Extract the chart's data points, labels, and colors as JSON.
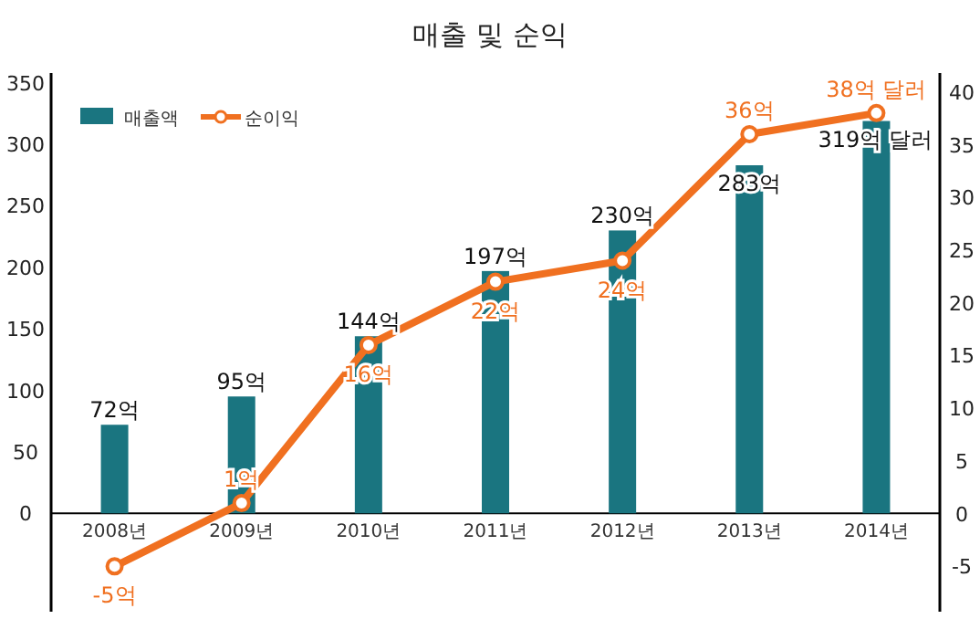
{
  "chart_data": {
    "type": "bar",
    "title": "매출 및 순익",
    "categories": [
      "2008년",
      "2009년",
      "2010년",
      "2011년",
      "2012년",
      "2013년",
      "2014년"
    ],
    "series": [
      {
        "name": "매출액",
        "color": "#1a7580",
        "values": [
          72,
          95,
          144,
          197,
          230,
          283,
          319
        ],
        "value_labels": [
          "72억",
          "95억",
          "144억",
          "197억",
          "230억",
          "283억",
          "319억 달러"
        ]
      },
      {
        "name": "순이익",
        "type": "line",
        "axis": "y2",
        "color": "#f07020",
        "marker": "circle",
        "values": [
          -5,
          1,
          16,
          22,
          24,
          36,
          38
        ],
        "value_labels": [
          "-5억",
          "1억",
          "16억",
          "22억",
          "24억",
          "36억",
          "38억 달러"
        ]
      }
    ],
    "ylim": [
      -80,
      358
    ],
    "yticks": [
      0,
      50,
      100,
      150,
      200,
      250,
      300,
      350
    ],
    "y2lim": [
      -9.3,
      41.8
    ],
    "y2ticks": [
      -5,
      0,
      5,
      10,
      15,
      20,
      25,
      30,
      35,
      40
    ],
    "legend": "top left"
  }
}
